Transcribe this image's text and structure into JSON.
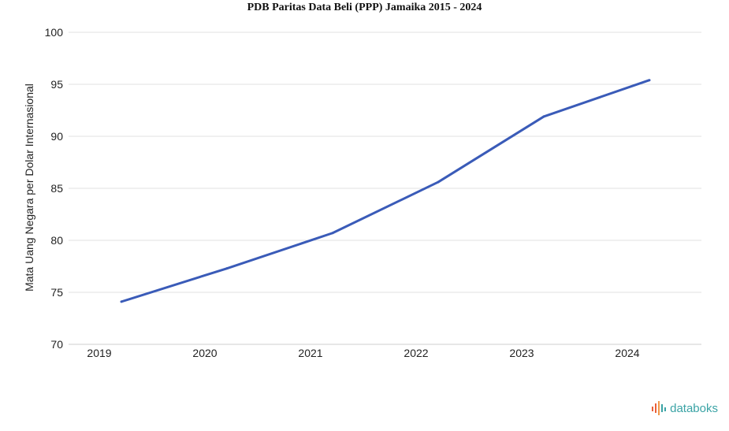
{
  "chart_data": {
    "type": "line",
    "title": "PDB Paritas Data Beli (PPP) Jamaika 2015 - 2024",
    "ylabel": "Mata Uang Negara per Dolar Internasional",
    "xlabel": "",
    "x": [
      "2019",
      "2020",
      "2021",
      "2022",
      "2023",
      "2024"
    ],
    "series": [
      {
        "values": [
          74.1,
          77.3,
          80.7,
          85.6,
          91.9,
          95.4
        ]
      }
    ],
    "ylim": [
      70,
      100
    ],
    "yticks": [
      70,
      75,
      80,
      85,
      90,
      95,
      100
    ],
    "grid": true,
    "line_color": "#3a5bb8"
  },
  "brand": {
    "name": "databoks",
    "icon": "bar-chart-icon"
  }
}
